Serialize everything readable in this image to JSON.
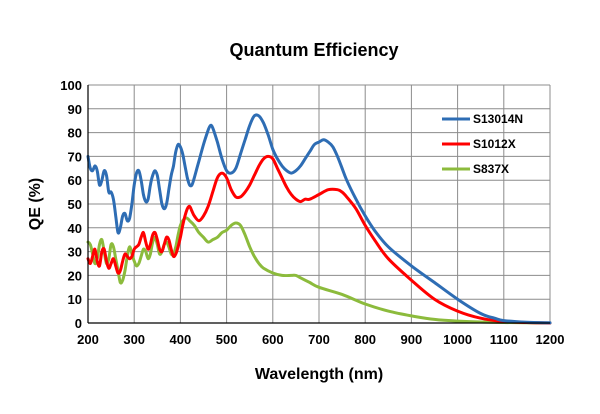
{
  "chart_data": {
    "type": "line",
    "title": "Quantum Efficiency",
    "xlabel": "Wavelength (nm)",
    "ylabel": "QE (%)",
    "xlim": [
      200,
      1200
    ],
    "ylim": [
      0,
      100
    ],
    "xticks": [
      200,
      300,
      400,
      500,
      600,
      700,
      800,
      900,
      1000,
      1100,
      1200
    ],
    "yticks": [
      0,
      10,
      20,
      30,
      40,
      50,
      60,
      70,
      80,
      90,
      100
    ],
    "grid": true,
    "legend_position": "top-right",
    "series": [
      {
        "name": "S13014N",
        "color": "#2e6db4",
        "points": [
          [
            200,
            70
          ],
          [
            205,
            65
          ],
          [
            210,
            64
          ],
          [
            215,
            66
          ],
          [
            220,
            64
          ],
          [
            225,
            58
          ],
          [
            230,
            60
          ],
          [
            235,
            64
          ],
          [
            240,
            62
          ],
          [
            245,
            55
          ],
          [
            250,
            55
          ],
          [
            255,
            52
          ],
          [
            260,
            45
          ],
          [
            265,
            38
          ],
          [
            270,
            40
          ],
          [
            275,
            45
          ],
          [
            280,
            46
          ],
          [
            285,
            43
          ],
          [
            290,
            44
          ],
          [
            295,
            50
          ],
          [
            300,
            58
          ],
          [
            305,
            63
          ],
          [
            310,
            64
          ],
          [
            315,
            60
          ],
          [
            320,
            54
          ],
          [
            325,
            51
          ],
          [
            330,
            52
          ],
          [
            335,
            58
          ],
          [
            340,
            62
          ],
          [
            345,
            64
          ],
          [
            350,
            62
          ],
          [
            355,
            56
          ],
          [
            360,
            50
          ],
          [
            365,
            48
          ],
          [
            370,
            50
          ],
          [
            375,
            56
          ],
          [
            380,
            62
          ],
          [
            385,
            66
          ],
          [
            390,
            72
          ],
          [
            395,
            75
          ],
          [
            400,
            74
          ],
          [
            405,
            71
          ],
          [
            410,
            66
          ],
          [
            415,
            61
          ],
          [
            420,
            58
          ],
          [
            425,
            58
          ],
          [
            430,
            61
          ],
          [
            440,
            68
          ],
          [
            450,
            75
          ],
          [
            460,
            81
          ],
          [
            465,
            83
          ],
          [
            470,
            82
          ],
          [
            480,
            76
          ],
          [
            490,
            69
          ],
          [
            500,
            64
          ],
          [
            510,
            63
          ],
          [
            520,
            65
          ],
          [
            530,
            71
          ],
          [
            540,
            77
          ],
          [
            550,
            83
          ],
          [
            560,
            87
          ],
          [
            570,
            87
          ],
          [
            580,
            84
          ],
          [
            590,
            79
          ],
          [
            600,
            73
          ],
          [
            610,
            69
          ],
          [
            620,
            66
          ],
          [
            630,
            64
          ],
          [
            640,
            63
          ],
          [
            650,
            64
          ],
          [
            660,
            66
          ],
          [
            670,
            69
          ],
          [
            680,
            72
          ],
          [
            690,
            75
          ],
          [
            700,
            76
          ],
          [
            710,
            77
          ],
          [
            720,
            76
          ],
          [
            730,
            74
          ],
          [
            740,
            70
          ],
          [
            750,
            65
          ],
          [
            760,
            60
          ],
          [
            780,
            52
          ],
          [
            800,
            45
          ],
          [
            820,
            39
          ],
          [
            850,
            32
          ],
          [
            900,
            24
          ],
          [
            950,
            17
          ],
          [
            1000,
            10
          ],
          [
            1050,
            4
          ],
          [
            1080,
            2
          ],
          [
            1100,
            1
          ],
          [
            1150,
            0.3
          ],
          [
            1200,
            0.1
          ]
        ]
      },
      {
        "name": "S1012X",
        "color": "#ff0000",
        "points": [
          [
            200,
            27
          ],
          [
            205,
            25
          ],
          [
            210,
            28
          ],
          [
            215,
            31
          ],
          [
            220,
            26
          ],
          [
            225,
            24
          ],
          [
            230,
            30
          ],
          [
            235,
            31
          ],
          [
            240,
            26
          ],
          [
            245,
            23
          ],
          [
            250,
            25
          ],
          [
            255,
            27
          ],
          [
            260,
            24
          ],
          [
            265,
            21
          ],
          [
            270,
            22
          ],
          [
            275,
            26
          ],
          [
            280,
            29
          ],
          [
            285,
            28
          ],
          [
            290,
            27
          ],
          [
            295,
            28
          ],
          [
            300,
            31
          ],
          [
            305,
            32
          ],
          [
            310,
            33
          ],
          [
            315,
            36
          ],
          [
            320,
            38
          ],
          [
            325,
            34
          ],
          [
            330,
            31
          ],
          [
            335,
            33
          ],
          [
            340,
            37
          ],
          [
            345,
            38
          ],
          [
            350,
            35
          ],
          [
            355,
            31
          ],
          [
            360,
            30
          ],
          [
            365,
            33
          ],
          [
            370,
            36
          ],
          [
            375,
            35
          ],
          [
            380,
            31
          ],
          [
            385,
            28
          ],
          [
            390,
            29
          ],
          [
            395,
            32
          ],
          [
            400,
            36
          ],
          [
            405,
            41
          ],
          [
            410,
            45
          ],
          [
            415,
            48
          ],
          [
            420,
            49
          ],
          [
            425,
            47
          ],
          [
            430,
            45
          ],
          [
            440,
            43
          ],
          [
            450,
            45
          ],
          [
            460,
            49
          ],
          [
            470,
            55
          ],
          [
            480,
            61
          ],
          [
            490,
            63
          ],
          [
            500,
            61
          ],
          [
            510,
            56
          ],
          [
            520,
            53
          ],
          [
            530,
            53
          ],
          [
            540,
            55
          ],
          [
            550,
            58
          ],
          [
            560,
            62
          ],
          [
            570,
            66
          ],
          [
            580,
            69
          ],
          [
            590,
            70
          ],
          [
            600,
            69
          ],
          [
            610,
            65
          ],
          [
            620,
            61
          ],
          [
            630,
            57
          ],
          [
            640,
            54
          ],
          [
            650,
            52
          ],
          [
            660,
            51
          ],
          [
            670,
            52
          ],
          [
            680,
            52
          ],
          [
            700,
            54
          ],
          [
            720,
            56
          ],
          [
            740,
            56
          ],
          [
            750,
            55
          ],
          [
            760,
            53
          ],
          [
            780,
            48
          ],
          [
            800,
            41
          ],
          [
            820,
            35
          ],
          [
            850,
            27
          ],
          [
            900,
            18
          ],
          [
            950,
            10
          ],
          [
            1000,
            5
          ],
          [
            1050,
            2
          ],
          [
            1100,
            0.6
          ],
          [
            1150,
            0.2
          ],
          [
            1200,
            0
          ]
        ]
      },
      {
        "name": "S837X",
        "color": "#8cbb3c",
        "points": [
          [
            200,
            34
          ],
          [
            205,
            33
          ],
          [
            210,
            29
          ],
          [
            215,
            25
          ],
          [
            220,
            27
          ],
          [
            225,
            33
          ],
          [
            230,
            35
          ],
          [
            235,
            30
          ],
          [
            240,
            25
          ],
          [
            245,
            27
          ],
          [
            250,
            33
          ],
          [
            255,
            32
          ],
          [
            260,
            27
          ],
          [
            265,
            22
          ],
          [
            270,
            17
          ],
          [
            275,
            18
          ],
          [
            280,
            22
          ],
          [
            285,
            28
          ],
          [
            290,
            32
          ],
          [
            295,
            29
          ],
          [
            300,
            26
          ],
          [
            305,
            24
          ],
          [
            310,
            25
          ],
          [
            315,
            28
          ],
          [
            320,
            31
          ],
          [
            325,
            30
          ],
          [
            330,
            27
          ],
          [
            335,
            29
          ],
          [
            340,
            34
          ],
          [
            345,
            36
          ],
          [
            350,
            33
          ],
          [
            355,
            29
          ],
          [
            360,
            30
          ],
          [
            365,
            33
          ],
          [
            370,
            34
          ],
          [
            375,
            32
          ],
          [
            380,
            29
          ],
          [
            385,
            29
          ],
          [
            390,
            32
          ],
          [
            395,
            37
          ],
          [
            400,
            41
          ],
          [
            405,
            43
          ],
          [
            410,
            44
          ],
          [
            415,
            44
          ],
          [
            420,
            43
          ],
          [
            430,
            41
          ],
          [
            440,
            38
          ],
          [
            450,
            36
          ],
          [
            460,
            34
          ],
          [
            470,
            35
          ],
          [
            480,
            36
          ],
          [
            490,
            38
          ],
          [
            500,
            39
          ],
          [
            510,
            41
          ],
          [
            520,
            42
          ],
          [
            530,
            41
          ],
          [
            540,
            37
          ],
          [
            550,
            32
          ],
          [
            560,
            28
          ],
          [
            570,
            25
          ],
          [
            580,
            23
          ],
          [
            600,
            21
          ],
          [
            620,
            20
          ],
          [
            640,
            20
          ],
          [
            650,
            20
          ],
          [
            660,
            19
          ],
          [
            680,
            17
          ],
          [
            700,
            15
          ],
          [
            750,
            12
          ],
          [
            800,
            8
          ],
          [
            850,
            5
          ],
          [
            900,
            3
          ],
          [
            950,
            1.5
          ],
          [
            1000,
            0.8
          ],
          [
            1050,
            0.4
          ],
          [
            1100,
            0.2
          ],
          [
            1150,
            0.1
          ],
          [
            1200,
            0
          ]
        ]
      }
    ]
  }
}
